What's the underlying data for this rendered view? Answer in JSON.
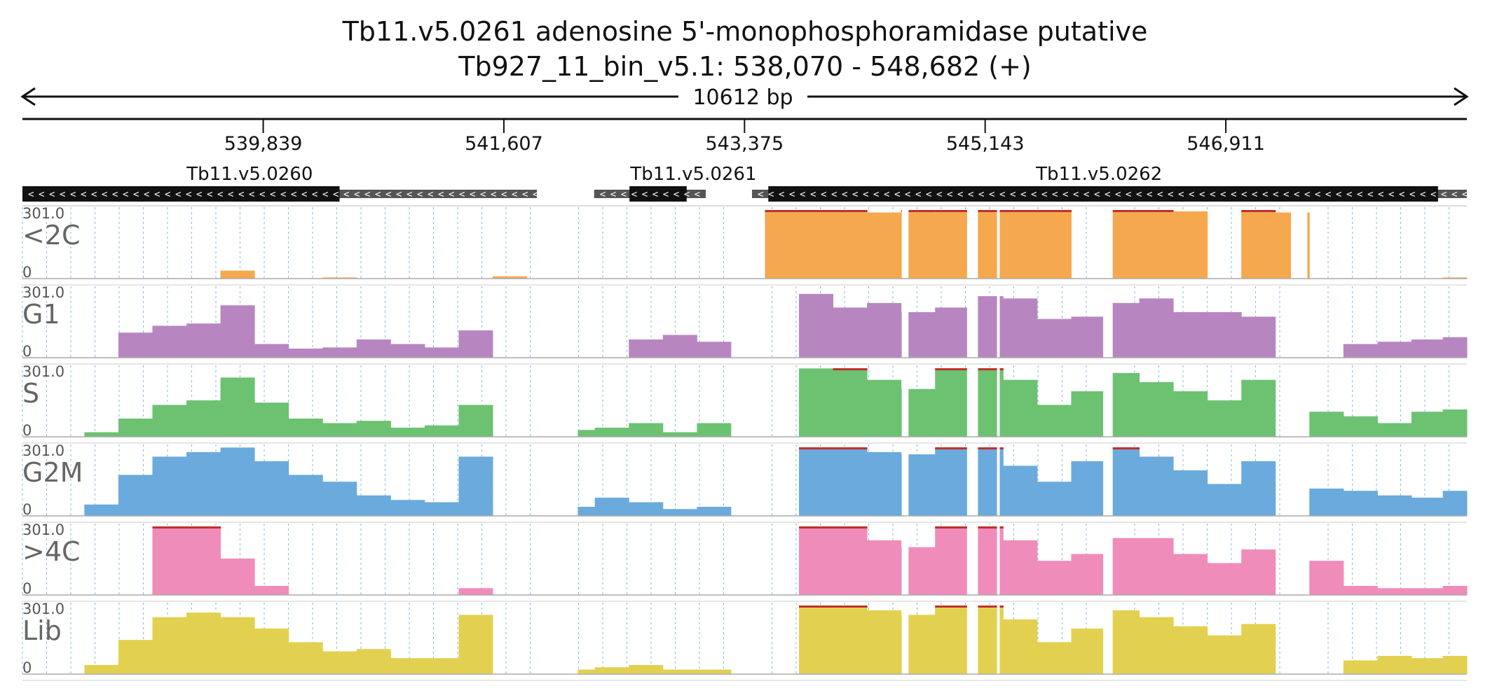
{
  "chart_data": {
    "type": "area",
    "title": "Tb11.v5.0261  adenosine 5'-monophosphoramidase  putative",
    "subtitle": "Tb927_11_bin_v5.1: 538,070 - 548,682 (+)",
    "span_label": "10612 bp",
    "region": {
      "start": 538070,
      "end": 548682,
      "strand": "+"
    },
    "ticks": [
      {
        "pos": 539839,
        "label": "539,839"
      },
      {
        "pos": 541607,
        "label": "541,607"
      },
      {
        "pos": 543375,
        "label": "543,375"
      },
      {
        "pos": 545143,
        "label": "545,143"
      },
      {
        "pos": 546911,
        "label": "546,911"
      }
    ],
    "genes": [
      {
        "name": "Tb11.v5.0260",
        "label_center": 539740,
        "strand": "-",
        "utr_start": 538070,
        "utr_end": 541850,
        "cds_start": 538070,
        "cds_end": 540400
      },
      {
        "name": "Tb11.v5.0261",
        "label_center": 543000,
        "strand": "-",
        "utr_start": 542270,
        "utr_end": 543090,
        "cds_start": 542530,
        "cds_end": 542950
      },
      {
        "name": "Tb11.v5.0262",
        "label_center": 545980,
        "strand": "-",
        "utr_start": 543430,
        "utr_end": 548682,
        "cds_start": 543550,
        "cds_end": 548470
      }
    ],
    "y_max_label": "301.0",
    "y_min_label": "0",
    "ylim": [
      0,
      301
    ],
    "x": [
      538140,
      538400,
      538650,
      538900,
      539150,
      539400,
      539650,
      539900,
      540150,
      540400,
      540650,
      540900,
      541150,
      541400,
      541650,
      541900,
      542150,
      542400,
      542650,
      542900,
      543150,
      543400,
      543650,
      543900,
      544150,
      544400,
      544650,
      544900,
      545150,
      545400,
      545650,
      545900,
      546150,
      546400,
      546650,
      546900,
      547150,
      547400,
      547650,
      547900,
      548150,
      548400,
      548610
    ],
    "series": [
      {
        "name": "<2C",
        "color": "#f5a84e",
        "values": [
          0,
          0,
          0,
          0,
          0,
          0,
          35,
          0,
          0,
          5,
          0,
          0,
          0,
          0,
          10,
          0,
          0,
          0,
          0,
          0,
          0,
          0,
          301,
          301,
          301,
          290,
          301,
          301,
          301,
          301,
          301,
          0,
          301,
          301,
          295,
          0,
          301,
          290,
          0,
          0,
          0,
          0,
          5
        ]
      },
      {
        "name": "G1",
        "color": "#b786c0",
        "values": [
          0,
          0,
          0,
          110,
          140,
          150,
          230,
          60,
          40,
          45,
          80,
          60,
          45,
          120,
          0,
          0,
          0,
          0,
          80,
          100,
          70,
          0,
          0,
          280,
          220,
          240,
          200,
          220,
          270,
          260,
          170,
          180,
          240,
          260,
          200,
          200,
          180,
          0,
          0,
          60,
          70,
          80,
          90
        ]
      },
      {
        "name": "S",
        "color": "#6cc271",
        "values": [
          0,
          0,
          20,
          80,
          140,
          160,
          260,
          150,
          80,
          60,
          70,
          40,
          50,
          140,
          0,
          0,
          30,
          40,
          60,
          20,
          60,
          0,
          0,
          300,
          301,
          250,
          210,
          301,
          301,
          250,
          140,
          200,
          280,
          240,
          200,
          160,
          250,
          0,
          110,
          90,
          60,
          110,
          120
        ]
      },
      {
        "name": "G2M",
        "color": "#6baadc",
        "values": [
          0,
          0,
          50,
          180,
          260,
          280,
          300,
          240,
          180,
          150,
          90,
          70,
          60,
          260,
          0,
          0,
          40,
          80,
          60,
          30,
          40,
          0,
          0,
          301,
          301,
          280,
          270,
          301,
          301,
          220,
          150,
          240,
          301,
          260,
          200,
          140,
          240,
          0,
          120,
          110,
          90,
          80,
          110
        ]
      },
      {
        "name": ">4C",
        "color": "#f08cba",
        "values": [
          0,
          0,
          0,
          0,
          301,
          301,
          160,
          40,
          0,
          0,
          0,
          0,
          0,
          30,
          0,
          0,
          0,
          0,
          0,
          0,
          0,
          0,
          0,
          301,
          301,
          240,
          210,
          301,
          301,
          240,
          150,
          180,
          250,
          250,
          180,
          140,
          200,
          0,
          150,
          40,
          30,
          30,
          40
        ]
      },
      {
        "name": "Lib",
        "color": "#e2d150",
        "values": [
          0,
          0,
          40,
          150,
          250,
          270,
          250,
          200,
          140,
          100,
          110,
          70,
          70,
          260,
          0,
          0,
          20,
          30,
          40,
          20,
          20,
          0,
          0,
          301,
          301,
          280,
          260,
          301,
          301,
          240,
          140,
          200,
          280,
          250,
          210,
          170,
          220,
          0,
          0,
          60,
          80,
          70,
          80
        ]
      }
    ],
    "coverage_gaps": [
      [
        541840,
        542150
      ],
      [
        543390,
        543440
      ],
      [
        544530,
        544580
      ],
      [
        545010,
        545090
      ],
      [
        545230,
        545250
      ],
      [
        546010,
        546080
      ],
      [
        547390,
        547510
      ]
    ],
    "saturation_color": "#c0302a",
    "grid": true
  }
}
